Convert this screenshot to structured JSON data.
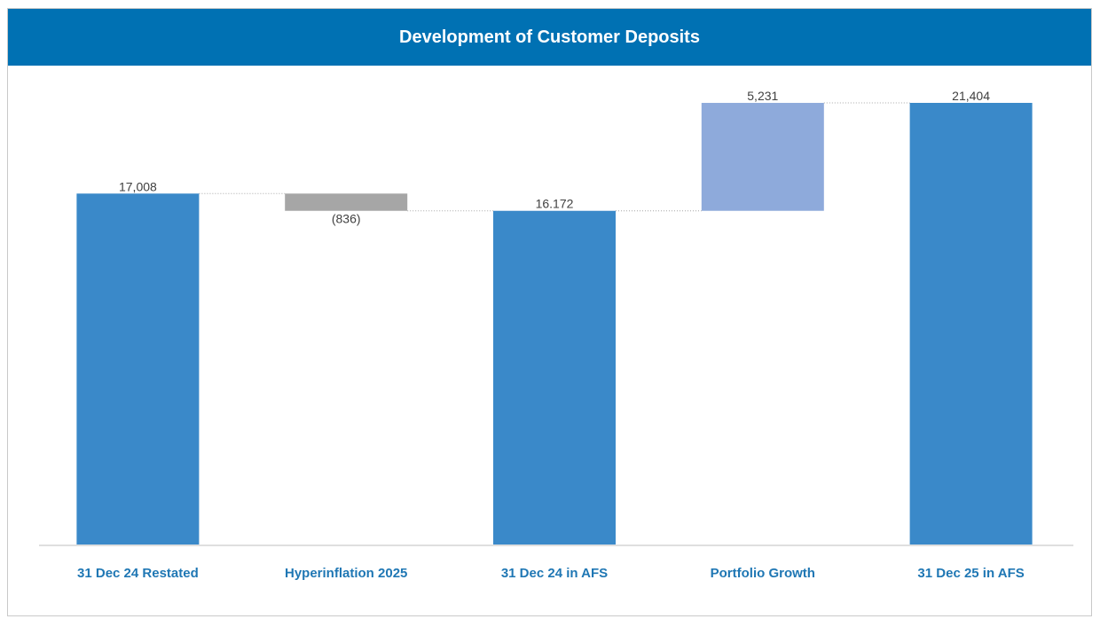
{
  "title": "Development of Customer Deposits",
  "colors": {
    "header": "#0071b3",
    "total": "#3a89c9",
    "decrease": "#a6a6a6",
    "increase": "#8eaadb",
    "category_text": "#1f77b4",
    "value_text": "#404040"
  },
  "chart_data": {
    "type": "bar",
    "subtype": "waterfall",
    "title": "Development of Customer Deposits",
    "categories": [
      "31 Dec 24 Restated",
      "Hyperinflation 2025",
      "31 Dec 24 in AFS",
      "Portfolio Growth",
      "31 Dec 25 in AFS"
    ],
    "values": [
      17008,
      -836,
      16172,
      5231,
      21404
    ],
    "value_labels": [
      "17,008",
      "(836)",
      "16.172",
      "5,231",
      "21,404"
    ],
    "kinds": [
      "total",
      "decrease",
      "total",
      "increase",
      "total"
    ],
    "ylim": [
      0,
      21404
    ],
    "grid": false,
    "legend": "none",
    "xlabel": "",
    "ylabel": ""
  }
}
